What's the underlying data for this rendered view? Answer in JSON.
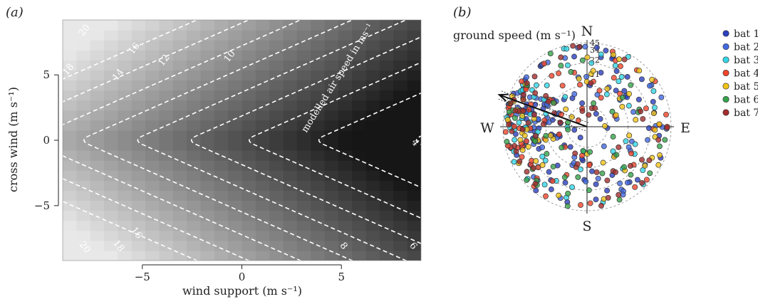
{
  "panel_a": {
    "panel_label": "(a)",
    "xlabel": "wind support (m s⁻¹)",
    "ylabel": "cross wind (m s⁻¹)",
    "annotation": "modelled air speed in ms⁻¹"
  },
  "panel_b": {
    "panel_label": "(b)",
    "title": "ground speed (m s⁻¹)",
    "compass": {
      "north": "N",
      "south": "S",
      "east": "E",
      "west": "W"
    },
    "ring_labels": [
      "45",
      "34",
      "22",
      "11"
    ]
  },
  "chart_data": [
    {
      "type": "heatmap",
      "xlim": [
        -9,
        9
      ],
      "ylim": [
        -9.2,
        9.2
      ],
      "x_ticks": [
        -5,
        0,
        5
      ],
      "y_ticks": [
        -5,
        0,
        5
      ],
      "x_tick_labels": [
        "−5",
        "0",
        "5"
      ],
      "y_tick_labels": [
        "−5",
        "0",
        "5"
      ],
      "colormap": "greys: light = high air speed, dark = low air speed",
      "contours": [
        {
          "level": 4,
          "vertex_x": 8.5
        },
        {
          "level": 6,
          "vertex_x": 3.6
        },
        {
          "level": 8,
          "vertex_x": 0.1
        },
        {
          "level": 10,
          "vertex_x": -2.8
        },
        {
          "level": 12,
          "vertex_x": -5.5
        },
        {
          "level": 14,
          "vertex_x": -8.2
        },
        {
          "level": 16,
          "vertex_x": -10.8
        },
        {
          "level": 18,
          "vertex_x": -13.4
        },
        {
          "level": 20,
          "vertex_x": -16
        }
      ],
      "contour_labels": [
        {
          "text": "20",
          "x": -7.9,
          "y": 8.4
        },
        {
          "text": "16",
          "x": -5.4,
          "y": 7
        },
        {
          "text": "14",
          "x": -6.2,
          "y": 5
        },
        {
          "text": "12",
          "x": -3.9,
          "y": 6.1
        },
        {
          "text": "10",
          "x": -0.6,
          "y": 6.4
        },
        {
          "text": "18",
          "x": -8.7,
          "y": 5.4
        },
        {
          "text": "4",
          "x": 8.7,
          "y": -0.2
        },
        {
          "text": "6",
          "x": 8.6,
          "y": -8.1
        },
        {
          "text": "8",
          "x": 5.1,
          "y": -8.1
        },
        {
          "text": "16",
          "x": -5.3,
          "y": -7.1
        },
        {
          "text": "18",
          "x": -6.2,
          "y": -8.1
        },
        {
          "text": "20",
          "x": -7.9,
          "y": -8.2
        }
      ],
      "grid": false
    },
    {
      "type": "scatter",
      "projection": "polar",
      "angle_convention": "degrees clockwise from north",
      "rlim": [
        0,
        45
      ],
      "ring_values": [
        11,
        22,
        34,
        45
      ],
      "mean_vector": {
        "angle_deg": 290,
        "length": 50
      },
      "legend": "right",
      "series": [
        {
          "name": "bat 1",
          "color": "#2b3fbf",
          "n": 90
        },
        {
          "name": "bat 2",
          "color": "#4169e1",
          "n": 70
        },
        {
          "name": "bat 3",
          "color": "#33d6e6",
          "n": 60
        },
        {
          "name": "bat 4",
          "color": "#f0452b",
          "n": 70
        },
        {
          "name": "bat 5",
          "color": "#f2c418",
          "n": 55
        },
        {
          "name": "bat 6",
          "color": "#35a34a",
          "n": 45
        },
        {
          "name": "bat 7",
          "color": "#a32c2c",
          "n": 55
        }
      ]
    }
  ]
}
